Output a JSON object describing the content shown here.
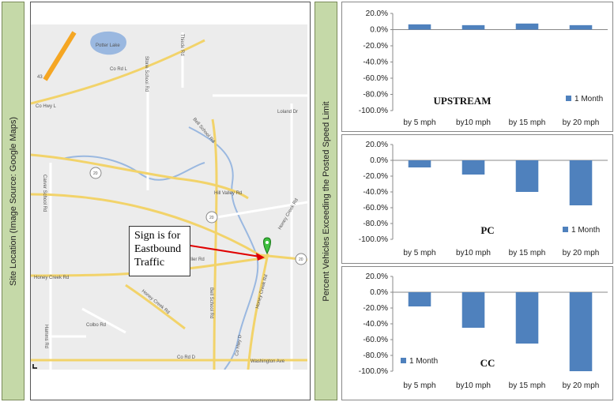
{
  "left_sidebar": {
    "label": "Site Location (Image Source: Google Maps)"
  },
  "right_sidebar": {
    "label": "Percent Vehicles Exceeding the Posted Speed Limit"
  },
  "map": {
    "labels": {
      "potter_lake": "Potter Lake",
      "thiede_rd": "Thiede Rd",
      "co_rd_l": "Co Rd L",
      "co_hwy_l": "Co Hwy L",
      "i43": "43",
      "stone_school_rd": "Stone School Rd",
      "loland_dr": "Loland Dr",
      "bell_school_rd_n": "Bell School Rd",
      "carver_school_rd": "Carver School Rd",
      "hill_valley_rd": "Hill Valley Rd",
      "route20_a": "20",
      "route20_b": "20",
      "route20_c": "20",
      "honey_creek_rd_ne": "Honey Creek Rd",
      "miller_rd": "Miller Rd",
      "honey_creek_rd_w": "Honey Creek Rd",
      "honey_creek_rd_sw": "Honey Creek Rd",
      "bell_school_rd_s": "Bell School Rd",
      "honey_creek_rd_s": "Honey Creek Rd",
      "colbo_rd": "Colbo Rd",
      "hamms_rd": "Hamms Rd",
      "co_hwy_d": "Co Hwy D",
      "co_rd_d": "Co Rd D",
      "washington_ave": "Washington Ave"
    },
    "callout_lines": [
      "Sign is for",
      "Eastbound",
      "Traffic"
    ],
    "colors": {
      "road_major": "#f2d36a",
      "road_minor": "#ffffff",
      "river": "#9ab8e0",
      "land": "#ececec",
      "interstate": "#f5a623",
      "pin": "#3fbf3f",
      "arrow": "#e00000"
    }
  },
  "chart_data": [
    {
      "type": "bar",
      "title": "UPSTREAM",
      "categories": [
        "by 5 mph",
        "by10 mph",
        "by 15 mph",
        "by 20 mph"
      ],
      "series": [
        {
          "name": "1 Month",
          "values": [
            6.5,
            5.5,
            7.5,
            5.5
          ]
        }
      ],
      "ylim": [
        -100,
        20
      ],
      "yticks": [
        "20.0%",
        "0.0%",
        "-20.0%",
        "-40.0%",
        "-60.0%",
        "-80.0%",
        "-100.0%"
      ],
      "color": "#4f81bd",
      "legend": "inside-bottom-right",
      "grid": false
    },
    {
      "type": "bar",
      "title": "PC",
      "categories": [
        "by 5 mph",
        "by10 mph",
        "by 15 mph",
        "by 20 mph"
      ],
      "series": [
        {
          "name": "1 Month",
          "values": [
            -9,
            -18,
            -40,
            -57
          ]
        }
      ],
      "ylim": [
        -100,
        20
      ],
      "yticks": [
        "20.0%",
        "0.0%",
        "-20.0%",
        "-40.0%",
        "-60.0%",
        "-80.0%",
        "-100.0%"
      ],
      "color": "#4f81bd",
      "legend": "inside-bottom-right",
      "grid": false
    },
    {
      "type": "bar",
      "title": "CC",
      "categories": [
        "by 5 mph",
        "by10 mph",
        "by 15 mph",
        "by 20 mph"
      ],
      "series": [
        {
          "name": "1 Month",
          "values": [
            -18,
            -45,
            -65,
            -100
          ]
        }
      ],
      "ylim": [
        -100,
        20
      ],
      "yticks": [
        "20.0%",
        "0.0%",
        "-20.0%",
        "-40.0%",
        "-60.0%",
        "-80.0%",
        "-100.0%"
      ],
      "color": "#4f81bd",
      "legend": "inside-bottom-left",
      "grid": false
    }
  ]
}
